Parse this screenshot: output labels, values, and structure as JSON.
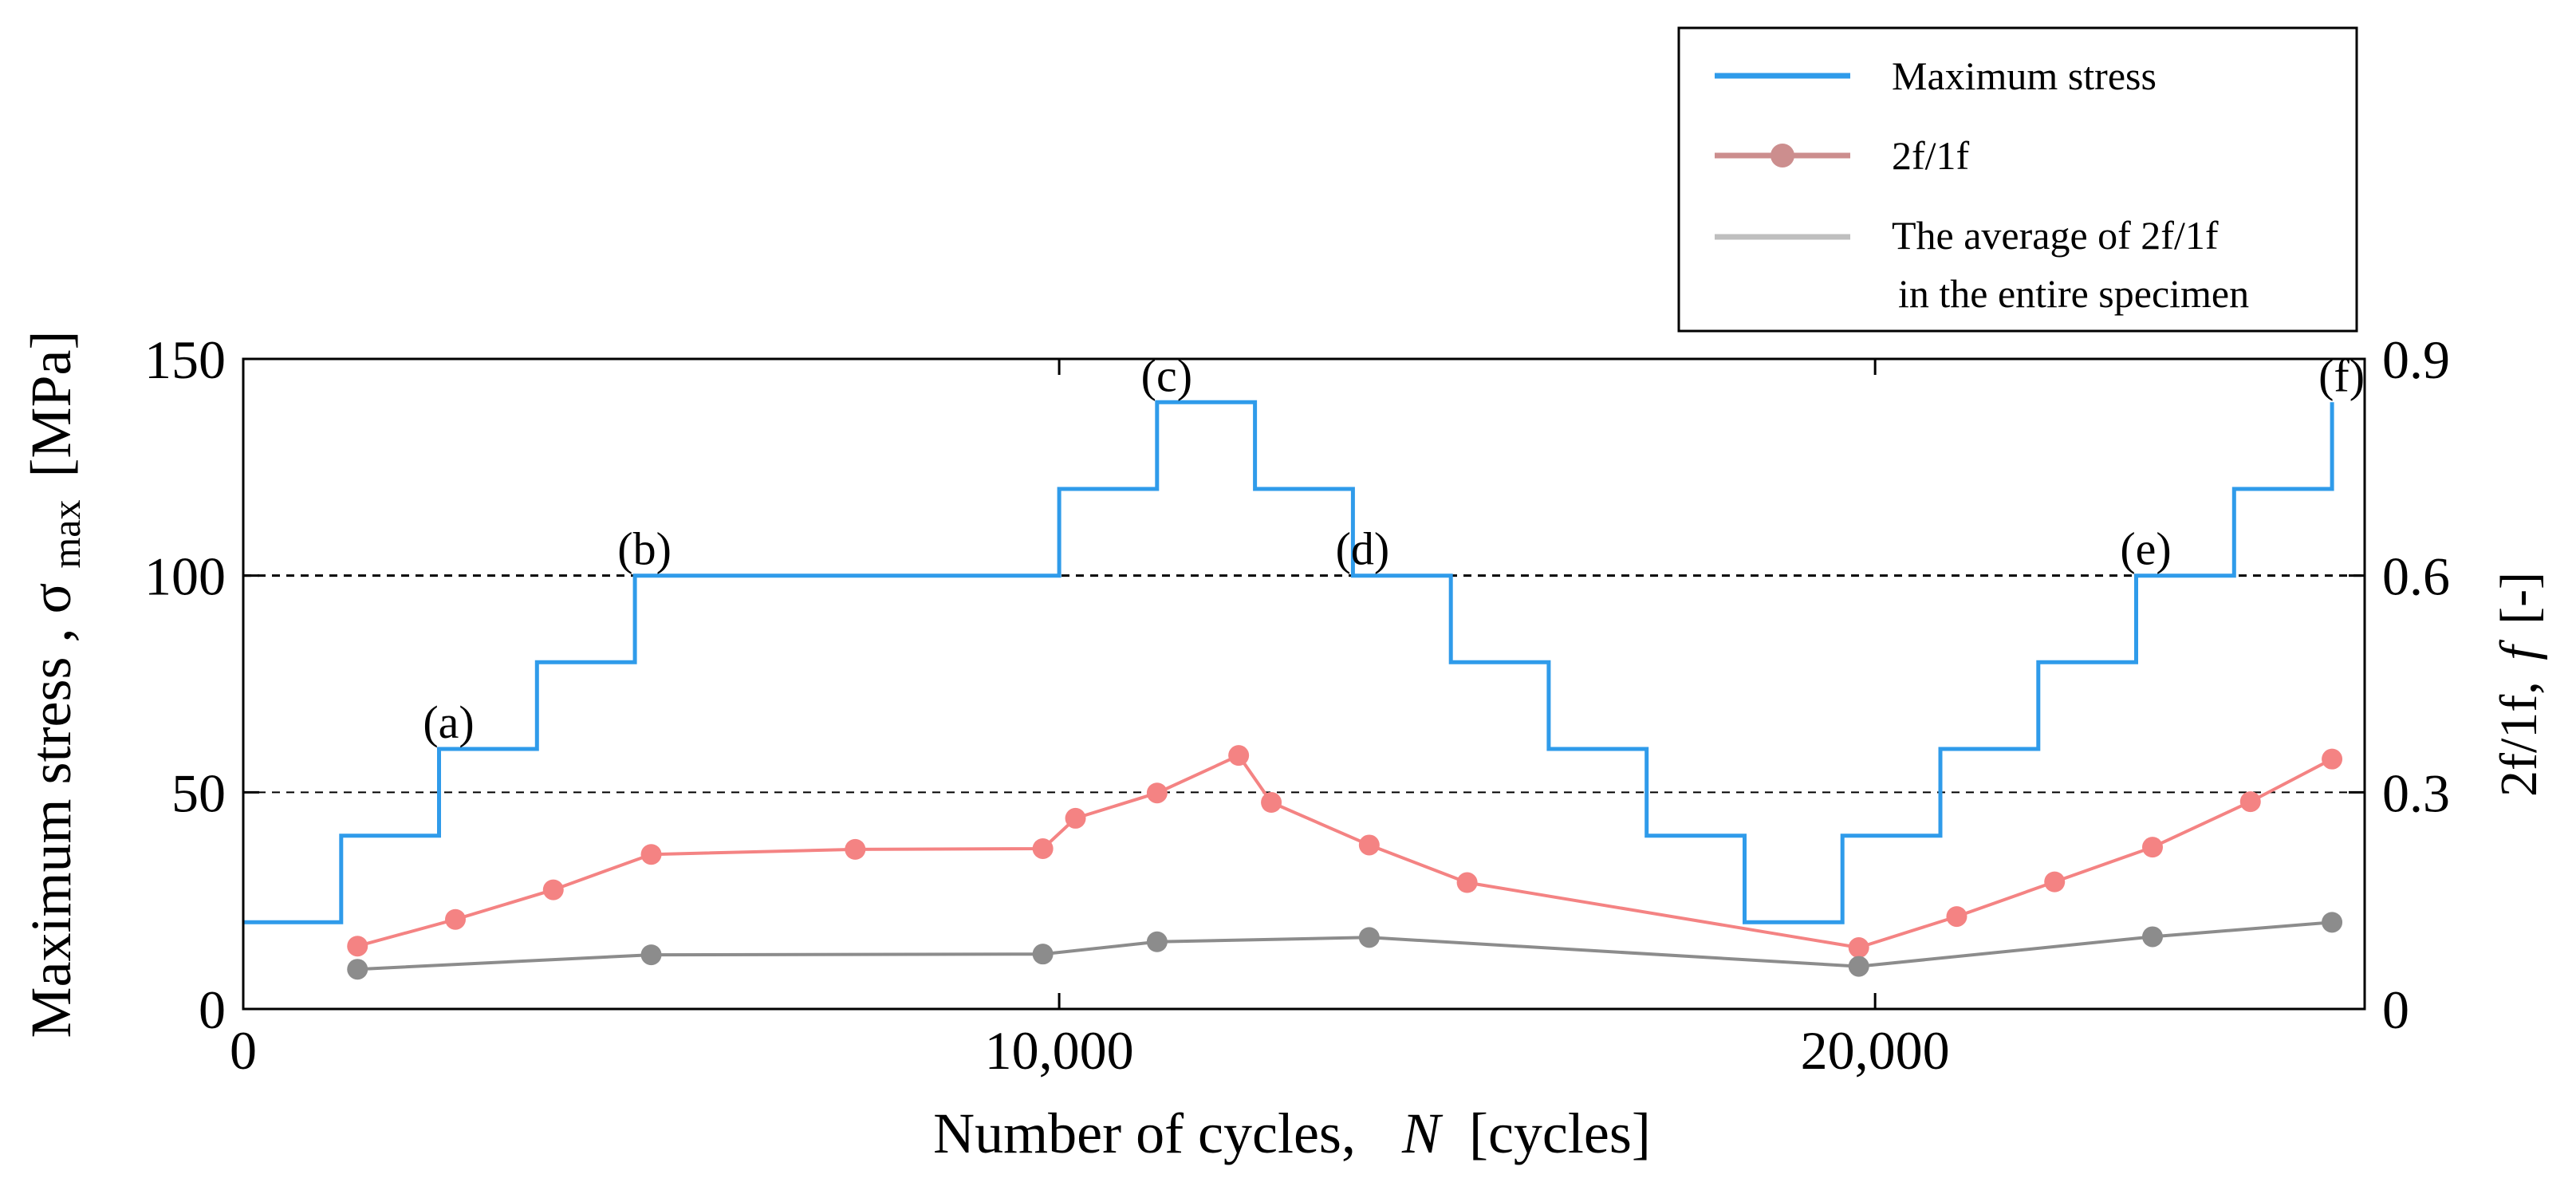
{
  "chart_data": {
    "type": "line",
    "xlabel_main": "Number of cycles,",
    "xlabel_var": "N",
    "xlabel_unit": "[cycles]",
    "ylabel_left_main": "Maximum stress ,",
    "ylabel_left_sigma": "σ",
    "ylabel_left_sub": "max",
    "ylabel_left_unit": "[MPa]",
    "ylabel_right_main": "2f/1f,",
    "ylabel_right_var": "f",
    "ylabel_right_unit": "[-]",
    "xlim": [
      0,
      26000
    ],
    "ylim_left": [
      0,
      150
    ],
    "ylim_right": [
      0,
      0.9
    ],
    "x_ticks": [
      0,
      10000,
      20000
    ],
    "x_tick_labels": [
      "0",
      "10,000",
      "20,000"
    ],
    "y_left_ticks": [
      0,
      50,
      100,
      150
    ],
    "y_left_tick_labels": [
      "0",
      "50",
      "100",
      "150"
    ],
    "y_right_ticks": [
      0,
      0.3,
      0.6,
      0.9
    ],
    "y_right_tick_labels": [
      "0",
      "0.3",
      "0.6",
      "0.9"
    ],
    "reference_lines_left": [
      50,
      100
    ],
    "series": [
      {
        "name": "Maximum stress",
        "axis": "left",
        "style": "step",
        "color": "#2f9bea",
        "x": [
          0,
          1200,
          1200,
          2400,
          2400,
          3600,
          3600,
          4800,
          4800,
          10000,
          10000,
          11200,
          11200,
          12400,
          12400,
          13600,
          13600,
          14800,
          14800,
          16000,
          16000,
          17200,
          17200,
          18400,
          18400,
          19600,
          19600,
          20800,
          20800,
          22000,
          22000,
          23200,
          23200,
          24400,
          24400,
          25600,
          25600
        ],
        "values": [
          20,
          20,
          40,
          40,
          60,
          60,
          80,
          80,
          100,
          100,
          120,
          120,
          140,
          140,
          120,
          120,
          100,
          100,
          80,
          80,
          60,
          60,
          40,
          40,
          20,
          20,
          40,
          40,
          60,
          60,
          80,
          80,
          100,
          100,
          120,
          120,
          140
        ]
      },
      {
        "name": "2f/1f",
        "axis": "right",
        "style": "line-marker",
        "color": "#f48383",
        "x": [
          1400,
          2600,
          3800,
          5000,
          7500,
          9800,
          10200,
          11200,
          12200,
          12600,
          13800,
          15000,
          19800,
          21000,
          22200,
          23400,
          24600,
          25600
        ],
        "values": [
          0.087,
          0.124,
          0.165,
          0.214,
          0.221,
          0.222,
          0.264,
          0.299,
          0.351,
          0.286,
          0.227,
          0.175,
          0.085,
          0.128,
          0.176,
          0.224,
          0.287,
          0.346
        ]
      },
      {
        "name": "The average of 2f/1f in the entire specimen",
        "axis": "right",
        "style": "line-marker",
        "color": "#8c8c8c",
        "x": [
          1400,
          5000,
          9800,
          11200,
          13800,
          19800,
          23400,
          25600
        ],
        "values": [
          0.055,
          0.075,
          0.076,
          0.093,
          0.099,
          0.059,
          0.1,
          0.12
        ]
      }
    ],
    "legend": {
      "placement": "top-right, above plot",
      "entries": [
        "Maximum stress",
        "2f/1f",
        "The average of 2f/1f"
      ],
      "entry3_line2": "in the entire specimen"
    },
    "annotations": [
      {
        "label": "(a)",
        "x": 2400,
        "y": 60
      },
      {
        "label": "(b)",
        "x": 4800,
        "y": 100
      },
      {
        "label": "(c)",
        "x": 11200,
        "y": 140
      },
      {
        "label": "(d)",
        "x": 13600,
        "y": 100
      },
      {
        "label": "(e)",
        "x": 23200,
        "y": 100
      },
      {
        "label": "(f)",
        "x": 25600,
        "y": 140
      }
    ]
  }
}
